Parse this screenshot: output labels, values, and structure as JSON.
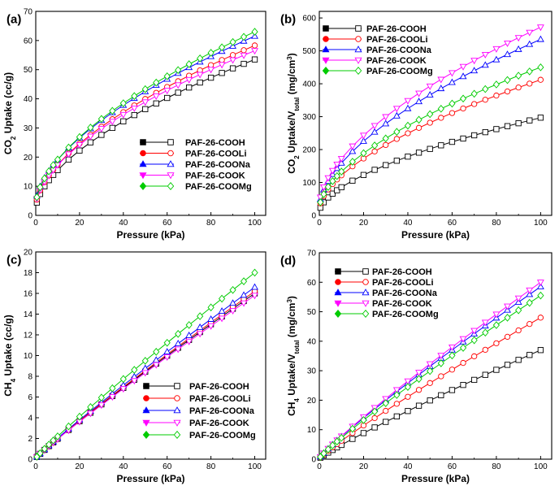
{
  "chart_data": [
    {
      "type": "line",
      "panel_label": "(a)",
      "xlabel": "Pressure (kPa)",
      "ylabel_parts": [
        "CO",
        "2",
        " Uptake (cc/g)"
      ],
      "xlim": [
        0,
        105
      ],
      "ylim": [
        0,
        70
      ],
      "xticks": [
        0,
        20,
        40,
        60,
        80,
        100
      ],
      "yticks": [
        0,
        10,
        20,
        30,
        40,
        50,
        60,
        70
      ],
      "legend_position": "bottom-right",
      "x": [
        0.5,
        2,
        4,
        6,
        8,
        10,
        15,
        20,
        25,
        30,
        35,
        40,
        45,
        50,
        55,
        60,
        65,
        70,
        75,
        80,
        85,
        90,
        95,
        100
      ],
      "series": [
        {
          "name": "PAF-26-COOH",
          "color": "#000000",
          "marker": "square",
          "ends": [
            2.0,
            53.5
          ]
        },
        {
          "name": "PAF-26-COOLi",
          "color": "#ff0000",
          "marker": "circle",
          "ends": [
            2.8,
            58.3
          ]
        },
        {
          "name": "PAF-26-COONa",
          "color": "#0000ff",
          "marker": "triangle-up",
          "ends": [
            4.0,
            61.5
          ]
        },
        {
          "name": "PAF-26-COOK",
          "color": "#ff00ff",
          "marker": "triangle-down",
          "ends": [
            3.3,
            56.5
          ]
        },
        {
          "name": "PAF-26-COOMg",
          "color": "#00cc00",
          "marker": "diamond",
          "ends": [
            3.5,
            63.0
          ]
        }
      ]
    },
    {
      "type": "line",
      "panel_label": "(b)",
      "xlabel": "Pressure (kPa)",
      "ylabel_parts": [
        "CO",
        "2",
        " Uptake/V",
        "total",
        " (mg/cm",
        "3",
        ")"
      ],
      "xlim": [
        0,
        105
      ],
      "ylim": [
        0,
        620
      ],
      "xticks": [
        0,
        20,
        40,
        60,
        80,
        100
      ],
      "yticks": [
        0,
        100,
        200,
        300,
        400,
        500,
        600
      ],
      "legend_position": "top-left",
      "x": [
        0.5,
        2,
        4,
        6,
        8,
        10,
        15,
        20,
        25,
        30,
        35,
        40,
        45,
        50,
        55,
        60,
        65,
        70,
        75,
        80,
        85,
        90,
        95,
        100
      ],
      "series": [
        {
          "name": "PAF-26-COOH",
          "color": "#000000",
          "marker": "square",
          "ends": [
            10,
            297
          ]
        },
        {
          "name": "PAF-26-COOLi",
          "color": "#ff0000",
          "marker": "circle",
          "ends": [
            18,
            412
          ]
        },
        {
          "name": "PAF-26-COONa",
          "color": "#0000ff",
          "marker": "triangle-up",
          "ends": [
            25,
            535
          ]
        },
        {
          "name": "PAF-26-COOK",
          "color": "#ff00ff",
          "marker": "triangle-down",
          "ends": [
            30,
            572
          ]
        },
        {
          "name": "PAF-26-COOMg",
          "color": "#00cc00",
          "marker": "diamond",
          "ends": [
            20,
            450
          ]
        }
      ]
    },
    {
      "type": "line",
      "panel_label": "(c)",
      "xlabel": "Pressure (kPa)",
      "ylabel_parts": [
        "CH",
        "4",
        " Uptake (cc/g)"
      ],
      "xlim": [
        0,
        105
      ],
      "ylim": [
        0,
        20
      ],
      "xticks": [
        0,
        20,
        40,
        60,
        80,
        100
      ],
      "yticks": [
        0,
        2,
        4,
        6,
        8,
        10,
        12,
        14,
        16,
        18,
        20
      ],
      "legend_position": "bottom-right",
      "x": [
        0.5,
        2,
        4,
        6,
        8,
        10,
        15,
        20,
        25,
        30,
        35,
        40,
        45,
        50,
        55,
        60,
        65,
        70,
        75,
        80,
        85,
        90,
        95,
        100
      ],
      "series": [
        {
          "name": "PAF-26-COOH",
          "color": "#000000",
          "marker": "square",
          "ends": [
            0.1,
            16.0
          ]
        },
        {
          "name": "PAF-26-COOLi",
          "color": "#ff0000",
          "marker": "circle",
          "ends": [
            0.1,
            16.2
          ]
        },
        {
          "name": "PAF-26-COONa",
          "color": "#0000ff",
          "marker": "triangle-up",
          "ends": [
            0.1,
            16.6
          ]
        },
        {
          "name": "PAF-26-COOK",
          "color": "#ff00ff",
          "marker": "triangle-down",
          "ends": [
            0.1,
            15.8
          ]
        },
        {
          "name": "PAF-26-COOMg",
          "color": "#00cc00",
          "marker": "diamond",
          "ends": [
            0.1,
            18.0
          ]
        }
      ]
    },
    {
      "type": "line",
      "panel_label": "(d)",
      "xlabel": "Pressure (kPa)",
      "ylabel_parts": [
        "CH",
        "4",
        " Uptake/V",
        "total",
        " (mg/cm",
        "3",
        ")"
      ],
      "xlim": [
        0,
        105
      ],
      "ylim": [
        0,
        70
      ],
      "xticks": [
        0,
        20,
        40,
        60,
        80,
        100
      ],
      "yticks": [
        0,
        10,
        20,
        30,
        40,
        50,
        60,
        70
      ],
      "legend_position": "top-left",
      "x": [
        0.5,
        2,
        4,
        6,
        8,
        10,
        15,
        20,
        25,
        30,
        35,
        40,
        45,
        50,
        55,
        60,
        65,
        70,
        75,
        80,
        85,
        90,
        95,
        100
      ],
      "series": [
        {
          "name": "PAF-26-COOH",
          "color": "#000000",
          "marker": "square",
          "ends": [
            0.2,
            37.0
          ]
        },
        {
          "name": "PAF-26-COOLi",
          "color": "#ff0000",
          "marker": "circle",
          "ends": [
            0.2,
            48.0
          ]
        },
        {
          "name": "PAF-26-COONa",
          "color": "#0000ff",
          "marker": "triangle-up",
          "ends": [
            0.3,
            58.5
          ]
        },
        {
          "name": "PAF-26-COOK",
          "color": "#ff00ff",
          "marker": "triangle-down",
          "ends": [
            0.3,
            60.0
          ]
        },
        {
          "name": "PAF-26-COOMg",
          "color": "#00cc00",
          "marker": "diamond",
          "ends": [
            0.3,
            55.5
          ]
        }
      ]
    }
  ]
}
